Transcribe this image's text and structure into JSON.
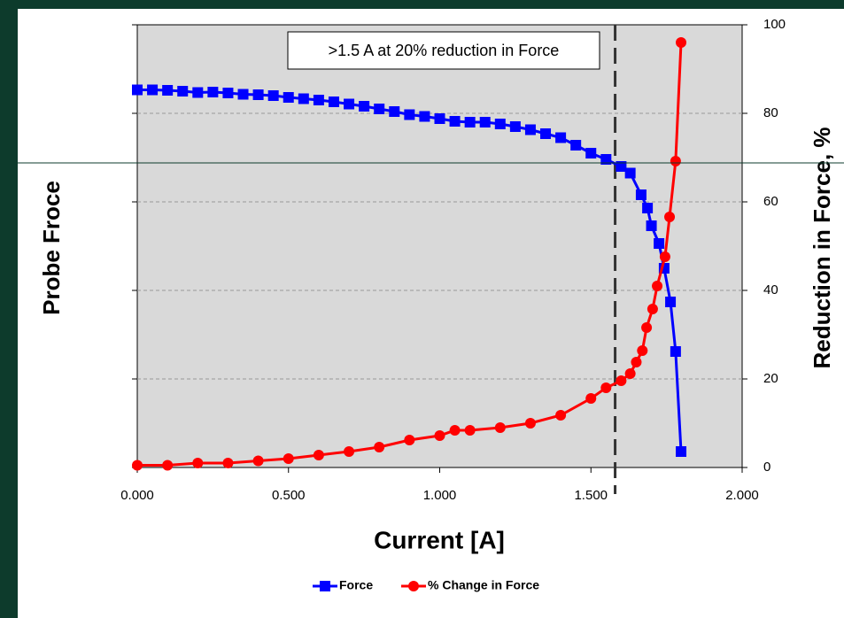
{
  "chart_data": {
    "type": "line",
    "x_label": "Current [A]",
    "y_label": "Probe Froce",
    "y2_label": "Reduction in Force, %",
    "annotation": ">1.5 A at  20% reduction in Force",
    "vline_x": 1.58,
    "xlim": [
      0,
      2
    ],
    "xticks": [
      {
        "value": 0,
        "label": "0.000"
      },
      {
        "value": 0.5,
        "label": "0.500"
      },
      {
        "value": 1,
        "label": "1.000"
      },
      {
        "value": 1.5,
        "label": "1.500"
      },
      {
        "value": 2,
        "label": "2.000"
      }
    ],
    "ylim": [
      0,
      100
    ],
    "yticks": [
      0,
      20,
      40,
      60,
      80,
      100
    ],
    "grid": true,
    "series": [
      {
        "name": "Force",
        "color": "#0000ff",
        "marker": "square",
        "x": [
          0,
          0.05,
          0.1,
          0.15,
          0.2,
          0.25,
          0.3,
          0.35,
          0.4,
          0.45,
          0.5,
          0.55,
          0.6,
          0.65,
          0.7,
          0.75,
          0.8,
          0.85,
          0.9,
          0.95,
          1.0,
          1.05,
          1.1,
          1.15,
          1.2,
          1.25,
          1.3,
          1.35,
          1.4,
          1.45,
          1.5,
          1.55,
          1.6,
          1.63,
          1.666,
          1.687,
          1.7,
          1.725,
          1.742,
          1.763,
          1.78,
          1.798
        ],
        "values": [
          85.3,
          85.3,
          85.2,
          85,
          84.7,
          84.8,
          84.6,
          84.3,
          84.2,
          84,
          83.6,
          83.3,
          83,
          82.6,
          82.1,
          81.6,
          81,
          80.4,
          79.7,
          79.3,
          78.8,
          78.2,
          78,
          78,
          77.6,
          77,
          76.3,
          75.4,
          74.5,
          72.8,
          71,
          69.6,
          68,
          66.5,
          61.6,
          58.6,
          54.6,
          50.6,
          45,
          37.4,
          26.2,
          3.6
        ]
      },
      {
        "name": "% Change in Force",
        "color": "#ff0000",
        "marker": "circle",
        "x": [
          0,
          0.1,
          0.2,
          0.3,
          0.4,
          0.5,
          0.6,
          0.7,
          0.8,
          0.9,
          1.0,
          1.05,
          1.1,
          1.2,
          1.3,
          1.4,
          1.5,
          1.55,
          1.6,
          1.63,
          1.65,
          1.67,
          1.684,
          1.704,
          1.719,
          1.745,
          1.76,
          1.78,
          1.798
        ],
        "values": [
          0.5,
          0.5,
          1,
          1,
          1.5,
          2,
          2.8,
          3.6,
          4.6,
          6.2,
          7.2,
          8.4,
          8.4,
          9,
          10,
          11.8,
          15.6,
          18,
          19.6,
          21.2,
          23.8,
          26.4,
          31.6,
          35.8,
          41,
          47.6,
          56.6,
          69.2,
          96
        ]
      }
    ]
  }
}
